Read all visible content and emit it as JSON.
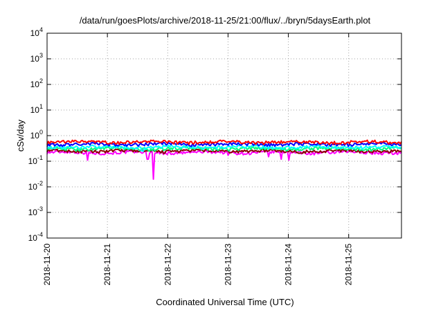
{
  "chart_data": {
    "type": "line",
    "title": "/data/run/goesPlots/archive/2018-11-25/21:00/flux/../bryn/5daysEarth.plot",
    "xlabel": "Coordinated Universal Time (UTC)",
    "ylabel": "cSv/day",
    "yscale": "log",
    "ylim": [
      0.0001,
      10000
    ],
    "xlim": [
      "2018-11-20T00:00",
      "2018-11-25T21:00"
    ],
    "grid": true,
    "x_ticks": [
      "2018-11-20",
      "2018-11-21",
      "2018-11-22",
      "2018-11-23",
      "2018-11-24",
      "2018-11-25"
    ],
    "y_ticks": [
      {
        "base": "10",
        "exp": "-4"
      },
      {
        "base": "10",
        "exp": "-3"
      },
      {
        "base": "10",
        "exp": "-2"
      },
      {
        "base": "10",
        "exp": "-1"
      },
      {
        "base": "10",
        "exp": "0"
      },
      {
        "base": "10",
        "exp": "1"
      },
      {
        "base": "10",
        "exp": "2"
      },
      {
        "base": "10",
        "exp": "3"
      },
      {
        "base": "10",
        "exp": "4"
      }
    ],
    "series": [
      {
        "color": "#ff00ff",
        "base": 0.22,
        "dips": [
          {
            "x": "2018-11-20T16:00",
            "y": 0.11
          },
          {
            "x": "2018-11-21T16:00",
            "y": 0.12
          },
          {
            "x": "2018-11-21T18:30",
            "y": 0.02
          },
          {
            "x": "2018-11-23T00:00",
            "y": 0.17
          },
          {
            "x": "2018-11-23T16:00",
            "y": 0.15
          },
          {
            "x": "2018-11-23T21:00",
            "y": 0.12
          },
          {
            "x": "2018-11-24T00:00",
            "y": 0.11
          }
        ]
      },
      {
        "color": "#8b0000",
        "base": 0.25,
        "dips": []
      },
      {
        "color": "#00ff7f",
        "base": 0.31,
        "dips": []
      },
      {
        "color": "#00ffff",
        "base": 0.36,
        "dips": [
          {
            "x": "2018-11-21T14:00",
            "y": 0.25
          }
        ]
      },
      {
        "color": "#0000ff",
        "base": 0.46,
        "dips": []
      },
      {
        "color": "#ff0000",
        "base": 0.56,
        "dips": []
      }
    ]
  }
}
